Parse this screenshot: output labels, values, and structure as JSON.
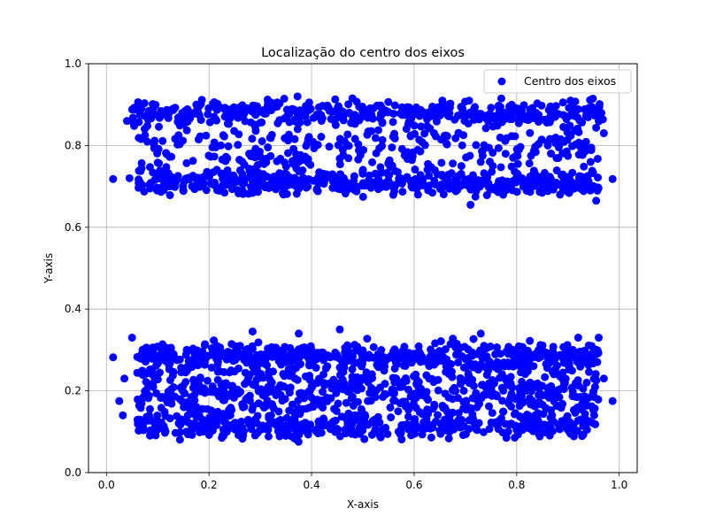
{
  "chart_data": {
    "type": "scatter",
    "title": "Localização do centro dos eixos",
    "xlabel": "X-axis",
    "ylabel": "Y-axis",
    "xlim": [
      -0.035,
      1.035
    ],
    "ylim": [
      0.0,
      1.0
    ],
    "xticks": [
      "0.0",
      "0.2",
      "0.4",
      "0.6",
      "0.8",
      "1.0"
    ],
    "yticks": [
      "0.0",
      "0.2",
      "0.4",
      "0.6",
      "0.8",
      "1.0"
    ],
    "grid": true,
    "legend_position": "top-right",
    "series": [
      {
        "name": "Centro dos eixos",
        "color": "#0000ff",
        "bands": [
          {
            "x_range": [
              0.05,
              0.97
            ],
            "y_center": 0.88,
            "y_spread": 0.015,
            "count": 420
          },
          {
            "x_range": [
              0.06,
              0.96
            ],
            "y_center": 0.81,
            "y_spread": 0.02,
            "count": 160
          },
          {
            "x_range": [
              0.06,
              0.96
            ],
            "y_center": 0.71,
            "y_spread": 0.015,
            "count": 480
          },
          {
            "x_range": [
              0.06,
              0.96
            ],
            "y_center": 0.76,
            "y_spread": 0.02,
            "count": 130
          },
          {
            "x_range": [
              0.06,
              0.96
            ],
            "y_center": 0.285,
            "y_spread": 0.015,
            "count": 480
          },
          {
            "x_range": [
              0.06,
              0.96
            ],
            "y_center": 0.2,
            "y_spread": 0.02,
            "count": 300
          },
          {
            "x_range": [
              0.06,
              0.96
            ],
            "y_center": 0.115,
            "y_spread": 0.015,
            "count": 420
          },
          {
            "x_range": [
              0.06,
              0.96
            ],
            "y_center": 0.16,
            "y_spread": 0.02,
            "count": 160
          },
          {
            "x_range": [
              0.06,
              0.96
            ],
            "y_center": 0.245,
            "y_spread": 0.02,
            "count": 160
          }
        ],
        "points": [
          [
            0.013,
            0.718
          ],
          [
            0.987,
            0.718
          ],
          [
            0.013,
            0.282
          ],
          [
            0.987,
            0.175
          ],
          [
            0.025,
            0.175
          ],
          [
            0.032,
            0.14
          ],
          [
            0.035,
            0.23
          ],
          [
            0.04,
            0.86
          ],
          [
            0.05,
            0.33
          ],
          [
            0.045,
            0.72
          ],
          [
            0.96,
            0.86
          ],
          [
            0.97,
            0.83
          ],
          [
            0.955,
            0.665
          ],
          [
            0.96,
            0.33
          ],
          [
            0.97,
            0.23
          ],
          [
            0.71,
            0.655
          ],
          [
            0.285,
            0.345
          ],
          [
            0.455,
            0.35
          ],
          [
            0.73,
            0.34
          ],
          [
            0.375,
            0.34
          ],
          [
            0.77,
            0.915
          ],
          [
            0.655,
            0.91
          ],
          [
            0.905,
            0.91
          ],
          [
            0.225,
            0.085
          ],
          [
            0.35,
            0.09
          ],
          [
            0.78,
            0.085
          ],
          [
            0.905,
            0.095
          ],
          [
            0.565,
            0.23
          ],
          [
            0.92,
            0.33
          ],
          [
            0.265,
            0.73
          ]
        ]
      }
    ]
  }
}
